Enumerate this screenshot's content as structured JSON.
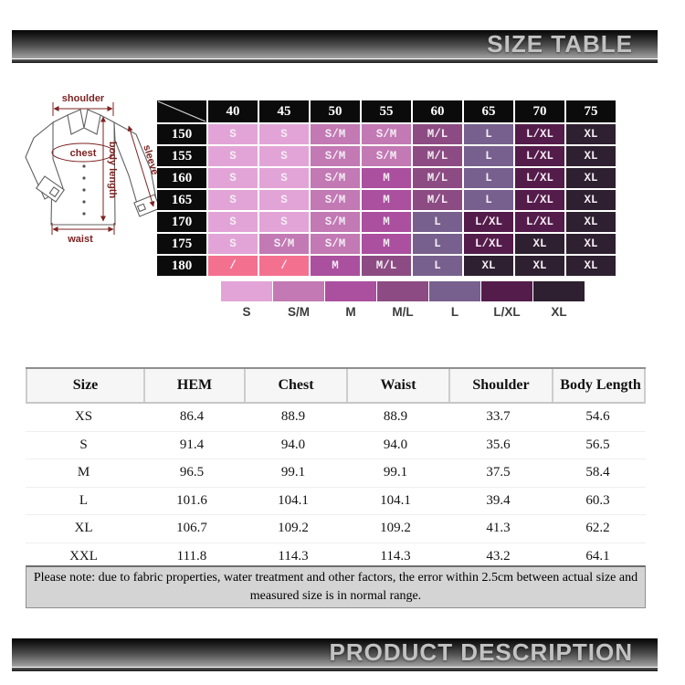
{
  "banners": {
    "top": "SIZE TABLE",
    "bottom": "PRODUCT DESCRIPTION"
  },
  "diagram": {
    "shoulder": "shoulder",
    "chest": "chest",
    "sleeve": "sleeve",
    "body_length": "body length",
    "waist": "waist"
  },
  "size_matrix": {
    "col_headers": [
      "40",
      "45",
      "50",
      "55",
      "60",
      "65",
      "70",
      "75"
    ],
    "row_headers": [
      "150",
      "155",
      "160",
      "165",
      "170",
      "175",
      "180"
    ],
    "cells": [
      [
        "S",
        "S",
        "S/M",
        "S/M",
        "M/L",
        "L",
        "L/XL",
        "XL"
      ],
      [
        "S",
        "S",
        "S/M",
        "S/M",
        "M/L",
        "L",
        "L/XL",
        "XL"
      ],
      [
        "S",
        "S",
        "S/M",
        "M",
        "M/L",
        "L",
        "L/XL",
        "XL"
      ],
      [
        "S",
        "S",
        "S/M",
        "M",
        "M/L",
        "L",
        "L/XL",
        "XL"
      ],
      [
        "S",
        "S",
        "S/M",
        "M",
        "L",
        "L/XL",
        "L/XL",
        "XL"
      ],
      [
        "S",
        "S/M",
        "S/M",
        "M",
        "L",
        "L/XL",
        "XL",
        "XL"
      ],
      [
        "/",
        "/",
        "M",
        "M/L",
        "L",
        "XL",
        "XL",
        "XL"
      ]
    ],
    "palette": {
      "S": "#e2a4d7",
      "S/M": "#c279b4",
      "M": "#ab4f9f",
      "M/L": "#8c4c83",
      "L": "#77608e",
      "L/XL": "#541c4b",
      "XL": "#2e2030",
      "/": "#f4708f"
    },
    "legend": [
      "S",
      "S/M",
      "M",
      "M/L",
      "L",
      "L/XL",
      "XL"
    ]
  },
  "size_table": {
    "columns": [
      "Size",
      "HEM",
      "Chest",
      "Waist",
      "Shoulder",
      "Body Length"
    ],
    "rows": [
      [
        "XS",
        "86.4",
        "88.9",
        "88.9",
        "33.7",
        "54.6"
      ],
      [
        "S",
        "91.4",
        "94.0",
        "94.0",
        "35.6",
        "56.5"
      ],
      [
        "M",
        "96.5",
        "99.1",
        "99.1",
        "37.5",
        "58.4"
      ],
      [
        "L",
        "101.6",
        "104.1",
        "104.1",
        "39.4",
        "60.3"
      ],
      [
        "XL",
        "106.7",
        "109.2",
        "109.2",
        "41.3",
        "62.2"
      ],
      [
        "XXL",
        "111.8",
        "114.3",
        "114.3",
        "43.2",
        "64.1"
      ]
    ],
    "note": "Please note: due to fabric properties, water treatment and other factors, the error within 2.5cm between actual size and measured size is in normal range."
  }
}
